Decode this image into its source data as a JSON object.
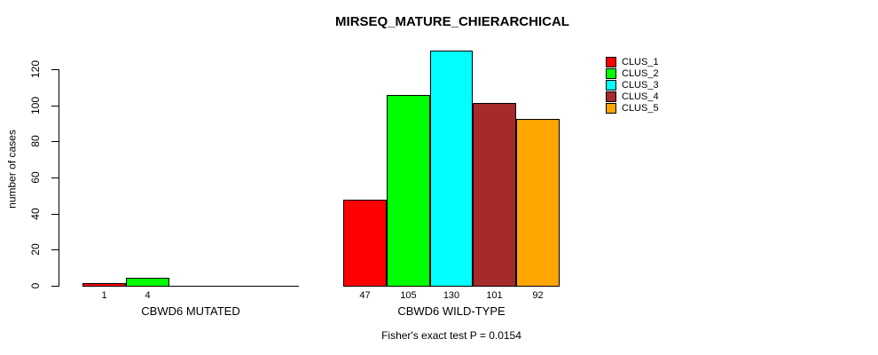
{
  "chart_data": {
    "type": "bar",
    "title": "MIRSEQ_MATURE_CHIERARCHICAL",
    "ylabel": "number of cases",
    "xlabel": "",
    "ylim": [
      0,
      130
    ],
    "yticks": [
      0,
      20,
      40,
      60,
      80,
      100,
      120
    ],
    "grid": false,
    "legend_position": "top-right",
    "series_names": [
      "CLUS_1",
      "CLUS_2",
      "CLUS_3",
      "CLUS_4",
      "CLUS_5"
    ],
    "series_colors": [
      "#ff0000",
      "#00ff00",
      "#00ffff",
      "#a52a2a",
      "#ffa500"
    ],
    "groups": [
      {
        "label": "CBWD6 MUTATED",
        "values": [
          1,
          4,
          0,
          0,
          0
        ]
      },
      {
        "label": "CBWD6 WILD-TYPE",
        "values": [
          47,
          105,
          130,
          101,
          92
        ]
      }
    ],
    "bar_value_labels_visible_when": "value > 0",
    "annotation": "Fisher's exact test P = 0.0154"
  }
}
